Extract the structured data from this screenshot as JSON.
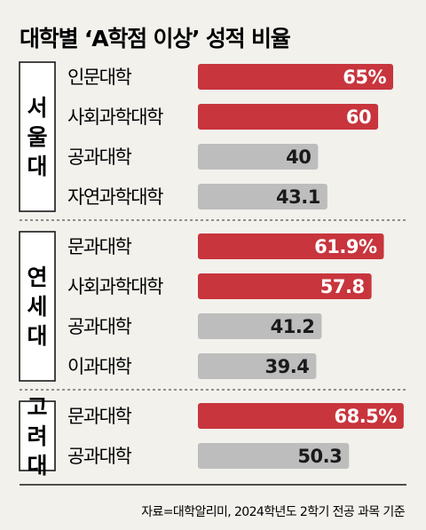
{
  "chart_data": {
    "type": "bar",
    "orientation": "horizontal",
    "title": "대학별 ‘A학점 이상’ 성적 비율",
    "source": "자료=대학알리미, 2024학년도 2학기 전공 과목 기준",
    "colors": {
      "highlight": "#c8353d",
      "normal": "#bdbdbd",
      "group_bg": "#f2f1ec"
    },
    "xlim": [
      0,
      75
    ],
    "groups": [
      {
        "name": "서울대",
        "bars": [
          {
            "category": "인문대학",
            "value": 65,
            "label": "65%",
            "highlight": true
          },
          {
            "category": "사회과학대학",
            "value": 60,
            "label": "60",
            "highlight": true
          },
          {
            "category": "공과대학",
            "value": 40,
            "label": "40",
            "highlight": false
          },
          {
            "category": "자연과학대학",
            "value": 43.1,
            "label": "43.1",
            "highlight": false
          }
        ]
      },
      {
        "name": "연세대",
        "bars": [
          {
            "category": "문과대학",
            "value": 61.9,
            "label": "61.9%",
            "highlight": true
          },
          {
            "category": "사회과학대학",
            "value": 57.8,
            "label": "57.8",
            "highlight": true
          },
          {
            "category": "공과대학",
            "value": 41.2,
            "label": "41.2",
            "highlight": false
          },
          {
            "category": "이과대학",
            "value": 39.4,
            "label": "39.4",
            "highlight": false
          }
        ]
      },
      {
        "name": "고려대",
        "bars": [
          {
            "category": "문과대학",
            "value": 68.5,
            "label": "68.5%",
            "highlight": true
          },
          {
            "category": "공과대학",
            "value": 50.3,
            "label": "50.3",
            "highlight": false
          }
        ]
      }
    ]
  }
}
